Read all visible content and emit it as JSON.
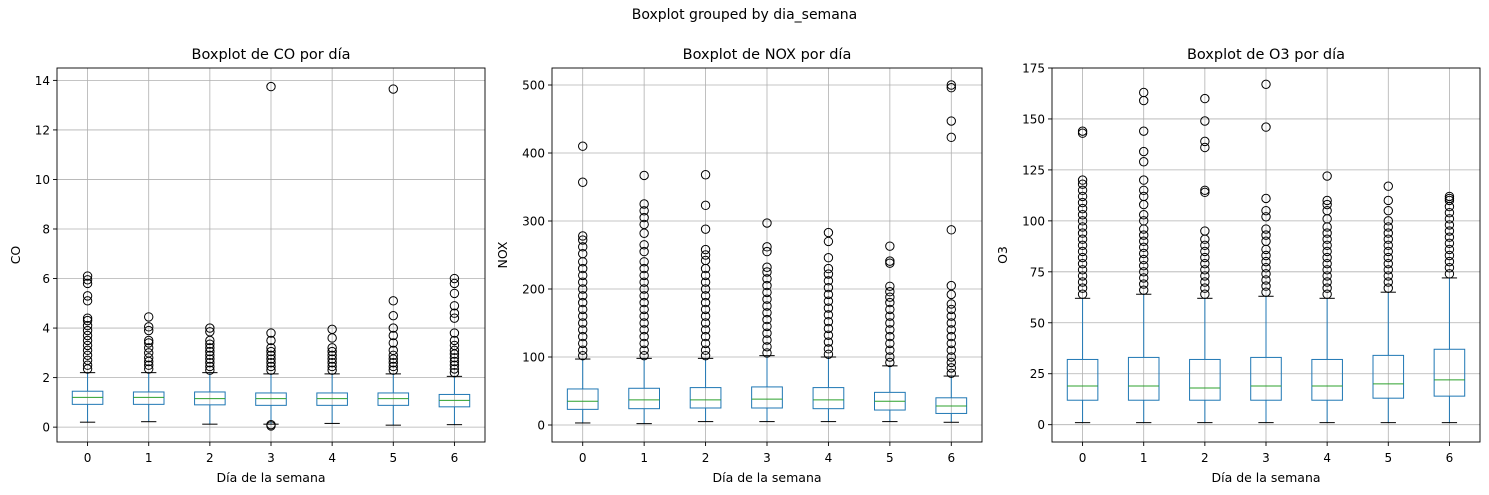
{
  "figure": {
    "suptitle": "Boxplot grouped by dia_semana"
  },
  "chart_data": [
    {
      "type": "box",
      "title": "Boxplot de CO por día",
      "xlabel": "Día de la semana",
      "ylabel": "CO",
      "categories": [
        "0",
        "1",
        "2",
        "3",
        "4",
        "5",
        "6"
      ],
      "ylim": [
        -0.6,
        14.5
      ],
      "yticks": [
        0,
        2,
        4,
        6,
        8,
        10,
        12,
        14
      ],
      "grid": true,
      "boxes": [
        {
          "whislo": 0.2,
          "q1": 0.92,
          "med": 1.2,
          "q3": 1.45,
          "whishi": 2.2,
          "fliers": [
            2.35,
            2.5,
            2.7,
            2.9,
            3.1,
            3.3,
            3.5,
            3.7,
            3.9,
            4.1,
            4.3,
            4.4,
            5.1,
            5.3,
            5.8,
            5.95,
            6.1
          ]
        },
        {
          "whislo": 0.22,
          "q1": 0.92,
          "med": 1.2,
          "q3": 1.42,
          "whishi": 2.2,
          "fliers": [
            2.35,
            2.5,
            2.65,
            2.8,
            3.0,
            3.2,
            3.4,
            3.5,
            3.9,
            4.05,
            4.45
          ]
        },
        {
          "whislo": 0.12,
          "q1": 0.9,
          "med": 1.15,
          "q3": 1.42,
          "whishi": 2.2,
          "fliers": [
            2.3,
            2.45,
            2.6,
            2.75,
            2.9,
            3.05,
            3.2,
            3.35,
            3.5,
            3.85,
            4.0
          ]
        },
        {
          "whislo": 0.12,
          "q1": 0.88,
          "med": 1.15,
          "q3": 1.38,
          "whishi": 2.15,
          "fliers": [
            0.05,
            0.1,
            2.3,
            2.45,
            2.6,
            2.75,
            2.9,
            3.05,
            3.2,
            3.5,
            3.8,
            13.75
          ]
        },
        {
          "whislo": 0.15,
          "q1": 0.88,
          "med": 1.15,
          "q3": 1.38,
          "whishi": 2.15,
          "fliers": [
            2.3,
            2.45,
            2.6,
            2.75,
            2.9,
            3.05,
            3.2,
            3.6,
            3.95
          ]
        },
        {
          "whislo": 0.08,
          "q1": 0.88,
          "med": 1.15,
          "q3": 1.38,
          "whishi": 2.15,
          "fliers": [
            2.3,
            2.45,
            2.6,
            2.75,
            2.9,
            3.1,
            3.4,
            3.7,
            4.0,
            4.5,
            5.1,
            13.65
          ]
        },
        {
          "whislo": 0.1,
          "q1": 0.82,
          "med": 1.08,
          "q3": 1.32,
          "whishi": 2.05,
          "fliers": [
            2.2,
            2.35,
            2.5,
            2.65,
            2.8,
            2.95,
            3.1,
            3.3,
            3.5,
            3.8,
            4.4,
            4.6,
            4.9,
            5.4,
            5.8,
            6.0
          ]
        }
      ]
    },
    {
      "type": "box",
      "title": "Boxplot de NOX por día",
      "xlabel": "Día de la semana",
      "ylabel": "NOX",
      "categories": [
        "0",
        "1",
        "2",
        "3",
        "4",
        "5",
        "6"
      ],
      "ylim": [
        -25,
        525
      ],
      "yticks": [
        0,
        100,
        200,
        300,
        400,
        500
      ],
      "grid": true,
      "boxes": [
        {
          "whislo": 3,
          "q1": 23,
          "med": 35,
          "q3": 53,
          "whishi": 97,
          "fliers": [
            102,
            110,
            120,
            130,
            140,
            150,
            160,
            170,
            180,
            190,
            200,
            210,
            220,
            230,
            240,
            252,
            262,
            272,
            278,
            357,
            410
          ]
        },
        {
          "whislo": 2,
          "q1": 24,
          "med": 37,
          "q3": 54,
          "whishi": 98,
          "fliers": [
            102,
            110,
            120,
            130,
            140,
            150,
            160,
            170,
            180,
            190,
            200,
            210,
            220,
            230,
            240,
            255,
            265,
            282,
            295,
            305,
            315,
            325,
            367
          ]
        },
        {
          "whislo": 5,
          "q1": 25,
          "med": 37,
          "q3": 55,
          "whishi": 98,
          "fliers": [
            102,
            110,
            120,
            130,
            140,
            150,
            160,
            170,
            180,
            190,
            200,
            210,
            220,
            230,
            242,
            250,
            258,
            288,
            323,
            368
          ]
        },
        {
          "whislo": 5,
          "q1": 25,
          "med": 38,
          "q3": 56,
          "whishi": 102,
          "fliers": [
            106,
            115,
            125,
            135,
            145,
            155,
            165,
            175,
            185,
            195,
            205,
            215,
            225,
            232,
            255,
            262,
            297
          ]
        },
        {
          "whislo": 5,
          "q1": 24,
          "med": 37,
          "q3": 55,
          "whishi": 100,
          "fliers": [
            104,
            112,
            122,
            132,
            142,
            152,
            162,
            172,
            182,
            192,
            202,
            212,
            222,
            230,
            246,
            270,
            283
          ]
        },
        {
          "whislo": 5,
          "q1": 22,
          "med": 35,
          "q3": 48,
          "whishi": 87,
          "fliers": [
            92,
            100,
            110,
            120,
            130,
            140,
            150,
            160,
            170,
            180,
            188,
            196,
            204,
            238,
            241,
            263
          ]
        },
        {
          "whislo": 4,
          "q1": 17,
          "med": 28,
          "q3": 40,
          "whishi": 72,
          "fliers": [
            76,
            84,
            92,
            100,
            110,
            120,
            130,
            140,
            150,
            160,
            170,
            178,
            192,
            205,
            287,
            423,
            447,
            496,
            500
          ]
        }
      ]
    },
    {
      "type": "box",
      "title": "Boxplot de O3 por día",
      "xlabel": "Día de la semana",
      "ylabel": "O3",
      "categories": [
        "0",
        "1",
        "2",
        "3",
        "4",
        "5",
        "6"
      ],
      "ylim": [
        -8.5,
        175
      ],
      "yticks": [
        0,
        25,
        50,
        75,
        100,
        125,
        150,
        175
      ],
      "grid": true,
      "boxes": [
        {
          "whislo": 1,
          "q1": 12,
          "med": 19,
          "q3": 32,
          "whishi": 62,
          "fliers": [
            64,
            67,
            70,
            73,
            76,
            79,
            82,
            85,
            88,
            91,
            94,
            97,
            100,
            103,
            106,
            109,
            112,
            115,
            118,
            120,
            143,
            144
          ]
        },
        {
          "whislo": 1,
          "q1": 12,
          "med": 19,
          "q3": 33,
          "whishi": 64,
          "fliers": [
            66,
            69,
            72,
            75,
            78,
            81,
            84,
            87,
            90,
            93,
            96,
            100,
            103,
            108,
            112,
            115,
            120,
            129,
            134,
            144,
            159,
            163
          ]
        },
        {
          "whislo": 1,
          "q1": 12,
          "med": 18,
          "q3": 32,
          "whishi": 62,
          "fliers": [
            64,
            67,
            70,
            73,
            76,
            79,
            82,
            85,
            88,
            91,
            95,
            114,
            115,
            136,
            139,
            149,
            160
          ]
        },
        {
          "whislo": 1,
          "q1": 12,
          "med": 19,
          "q3": 33,
          "whishi": 63,
          "fliers": [
            65,
            68,
            71,
            74,
            77,
            80,
            83,
            86,
            90,
            93,
            96,
            102,
            105,
            111,
            146,
            167
          ]
        },
        {
          "whislo": 1,
          "q1": 12,
          "med": 19,
          "q3": 32,
          "whishi": 62,
          "fliers": [
            64,
            67,
            70,
            73,
            76,
            79,
            82,
            85,
            88,
            91,
            94,
            97,
            101,
            105,
            108,
            110,
            122
          ]
        },
        {
          "whislo": 1,
          "q1": 13,
          "med": 20,
          "q3": 34,
          "whishi": 65,
          "fliers": [
            67,
            70,
            73,
            76,
            79,
            82,
            85,
            88,
            91,
            94,
            97,
            100,
            105,
            110,
            117
          ]
        },
        {
          "whislo": 1,
          "q1": 14,
          "med": 22,
          "q3": 37,
          "whishi": 72,
          "fliers": [
            74,
            77,
            80,
            83,
            86,
            89,
            92,
            95,
            98,
            101,
            104,
            107,
            110,
            111,
            112
          ]
        }
      ]
    }
  ]
}
